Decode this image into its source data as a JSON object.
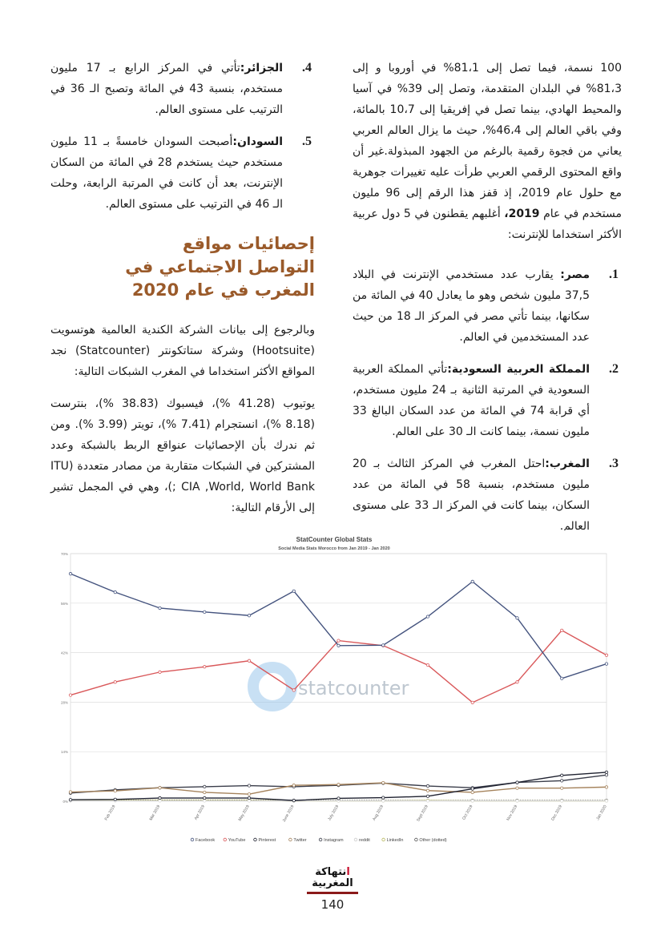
{
  "right_column": {
    "intro": "100 نسمة، فيما تصل إلى 81،1% في أوروبا و إلى 81،3% في البلدان المتقدمة، وتصل إلى 39% في آسيا والمحيط الهادي، بينما تصل في إفريقيا إلى 10،7 بالمائة، وفي باقي العالم إلى 46،4%، حيث ما يزال العالم العربي يعاني من فجوة رقمية بالرغم من الجهود المبذولة.غير أن واقع المحتوى الرقمي العربي طرأت عليه تغييرات جوهرية مع حلول عام 2019، إذ قفز هذا الرقم إلى 96 مليون مستخدم في عام",
    "intro_bold_year": "2019،",
    "intro_end": "أغلبهم يقطنون في 5 دول عربية الأكثر استخداما للإنترنت:",
    "items": [
      {
        "num": "1.",
        "title": "مصر:",
        "text": " يقارب عدد مستخدمي الإنترنت في البلاد 37,5 مليون شخص وهو ما يعادل 40 في المائة من سكانها، بينما تأتي مصر في المركز الـ 18 من حيث عدد المستخدمين في العالم."
      },
      {
        "num": "2.",
        "title": "المملكة العربية السعودية:",
        "text": "تأتي المملكة العربية السعودية في المرتبة الثانية بـ 24 مليون مستخدم، أي قرابة 74 في المائة من عدد السكان البالغ 33 مليون نسمة، بينما كانت الـ 30 على العالم."
      },
      {
        "num": "3.",
        "title": "المغرب:",
        "text": "احتل المغرب في المركز الثالث بـ 20 مليون مستخدم، بنسبة 58 في المائة من عدد السكان، بينما كانت في المركز الـ 33 على مستوى العالم."
      }
    ]
  },
  "left_column": {
    "items": [
      {
        "num": "4.",
        "title": "الجزائر:",
        "text": "تأتي في المركز الرابع بـ 17 مليون مستخدم، بنسبة 43 في المائة وتصبح الـ 36 في الترتيب على مستوى العالم."
      },
      {
        "num": "5.",
        "title": "السودان:",
        "text": "أصبحت السودان خامسةً بـ 11 مليون مستخدم حيث يستخدم 28 في المائة من السكان الإنترنت، بعد أن كانت في المرتبة الرابعة، وحلت الـ 46 في الترتيب على مستوى العالم."
      }
    ],
    "heading": "إحصائيات مواقع التواصل الاجتماعي في المغرب في عام 2020",
    "paragraph1": "وبالرجوع إلى بيانات الشركة الكندية العالمية هوتسويت (Hootsuite) وشركة ستاتكونتر (Statcounter) نجد المواقع الأكثر استخداما في المغرب الشبكات التالية:",
    "paragraph2": "يوتيوب (41.28 %)، فيسبوك (38.83 %)، بنترست (8.18 %)، انستجرام (7.41 %)، تويتر (3.99 %). ومن ثم ندرك بأن الإحصائيات عنواقع الربط بالشبكة وعدد المشتركين في الشبكات متقاربة من مصادر متعددة (ITU ; CIA ,World, World Bank)، وهي في المجمل تشير إلى الأرقام التالية:"
  },
  "chart_data": {
    "type": "line",
    "title": "StatCounter Global Stats",
    "subtitle": "Social Media Stats Morocco from Jan 2019 - Jan 2020",
    "watermark": "statcounter",
    "categories": [
      "Jan 2019",
      "Feb 2019",
      "Mar 2019",
      "Apr 2019",
      "May 2019",
      "June 2019",
      "July 2019",
      "Aug 2019",
      "Sept 2019",
      "Oct 2019",
      "Nov 2019",
      "Dec 2019",
      "Jan 2020"
    ],
    "x_tick_labels": [
      "Feb 2019",
      "Mar 2019",
      "Apr 2019",
      "May 2019",
      "June 2019",
      "July 2019",
      "Aug 2019",
      "Sept 2019",
      "Oct 2019",
      "Nov 2019",
      "Dec 2019",
      "Jan 2020"
    ],
    "y_ticks": [
      "0%",
      "14%",
      "28%",
      "42%",
      "56%",
      "70%"
    ],
    "ylim": [
      0,
      70
    ],
    "grid": true,
    "legend_position": "bottom",
    "series": [
      {
        "name": "Facebook",
        "color": "#44537e",
        "values": [
          64.3,
          59.1,
          54.6,
          53.5,
          52.5,
          59.4,
          44.0,
          44.1,
          52.2,
          62.1,
          51.8,
          34.7,
          38.83
        ]
      },
      {
        "name": "YouTube",
        "color": "#d9585a",
        "values": [
          30.0,
          33.7,
          36.5,
          38.0,
          39.7,
          31.4,
          45.4,
          44.0,
          38.5,
          27.9,
          33.7,
          48.3,
          41.28
        ]
      },
      {
        "name": "Pinterest",
        "color": "#1f2230",
        "values": [
          0.4,
          0.5,
          0.9,
          0.9,
          0.9,
          0.2,
          0.8,
          1.0,
          1.4,
          3.5,
          5.3,
          7.3,
          8.18
        ]
      },
      {
        "name": "Twitter",
        "color": "#a5835c",
        "values": [
          2.6,
          2.9,
          3.8,
          2.5,
          2.0,
          4.5,
          4.7,
          5.2,
          3.0,
          2.5,
          3.7,
          3.7,
          3.99
        ]
      },
      {
        "name": "Instagram",
        "color": "#3a3d4a",
        "values": [
          2.3,
          3.2,
          3.8,
          4.1,
          4.4,
          4.1,
          4.5,
          5.1,
          4.3,
          3.8,
          5.3,
          5.8,
          7.41
        ]
      },
      {
        "name": "reddit",
        "color": "#dddddd",
        "values": [
          0.1,
          0.1,
          0.1,
          0.1,
          0.1,
          0.1,
          0.1,
          0.1,
          0.1,
          0.1,
          0.1,
          0.1,
          0.1
        ]
      },
      {
        "name": "LinkedIn",
        "color": "#b8b860",
        "values": [
          0.2,
          0.2,
          0.2,
          0.2,
          0.2,
          0.1,
          0.1,
          0.1,
          0.2,
          0.1,
          0.1,
          0.1,
          0.1
        ]
      },
      {
        "name": "Other (dotted)",
        "color": "#555555",
        "values": [
          0.3,
          0.3,
          0.3,
          0.3,
          0.3,
          0.2,
          0.2,
          0.2,
          0.2,
          0.2,
          0.2,
          0.2,
          0.2
        ]
      }
    ]
  },
  "footer": {
    "logo_text": "انتهاكة المغربية",
    "page_number": "140"
  }
}
